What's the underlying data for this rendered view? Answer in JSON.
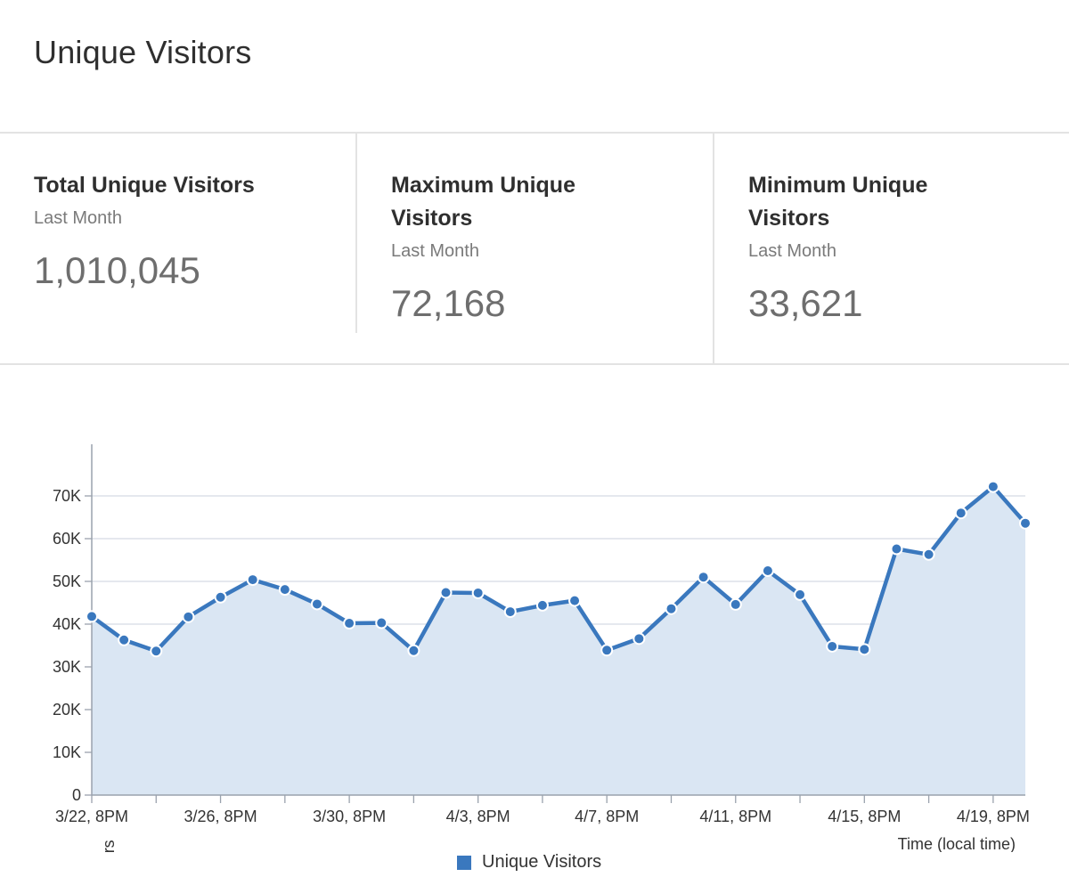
{
  "page": {
    "title": "Unique Visitors"
  },
  "stats": [
    {
      "label": "Total Unique Visitors",
      "period": "Last Month",
      "value": "1,010,045"
    },
    {
      "label": "Maximum Unique Visitors",
      "period": "Last Month",
      "value": "72,168"
    },
    {
      "label": "Minimum Unique Visitors",
      "period": "Last Month",
      "value": "33,621"
    }
  ],
  "colors": {
    "line": "#3a78be",
    "area": "#dae6f3",
    "grid": "#d5dbe3",
    "axis": "#9aa2ad"
  },
  "chart_data": {
    "type": "area",
    "xlabel": "Time (local time)",
    "ylabel": "Visitors",
    "ylim": [
      0,
      80000
    ],
    "yticks": [
      0,
      10000,
      20000,
      30000,
      40000,
      50000,
      60000,
      70000
    ],
    "ytick_labels": [
      "0",
      "10K",
      "20K",
      "30K",
      "40K",
      "50K",
      "60K",
      "70K"
    ],
    "xtick_labels": [
      "3/22, 8PM",
      "3/26, 8PM",
      "3/30, 8PM",
      "4/3, 8PM",
      "4/7, 8PM",
      "4/11, 8PM",
      "4/15, 8PM",
      "4/19, 8PM"
    ],
    "grid": true,
    "legend": "bottom-center",
    "series": [
      {
        "name": "Unique Visitors",
        "x": [
          "3/22",
          "3/23",
          "3/24",
          "3/25",
          "3/26",
          "3/27",
          "3/28",
          "3/29",
          "3/30",
          "3/31",
          "4/1",
          "4/2",
          "4/3",
          "4/4",
          "4/5",
          "4/6",
          "4/7",
          "4/8",
          "4/9",
          "4/10",
          "4/11",
          "4/12",
          "4/13",
          "4/14",
          "4/15",
          "4/16",
          "4/17",
          "4/18",
          "4/19",
          "4/20"
        ],
        "values": [
          41800,
          36300,
          33700,
          41700,
          46300,
          50400,
          48100,
          44700,
          40200,
          40300,
          33800,
          47400,
          47300,
          42900,
          44400,
          45500,
          33900,
          36600,
          43600,
          51000,
          44600,
          52500,
          46900,
          34800,
          34100,
          57600,
          56300,
          66000,
          72168,
          63600
        ]
      }
    ]
  }
}
